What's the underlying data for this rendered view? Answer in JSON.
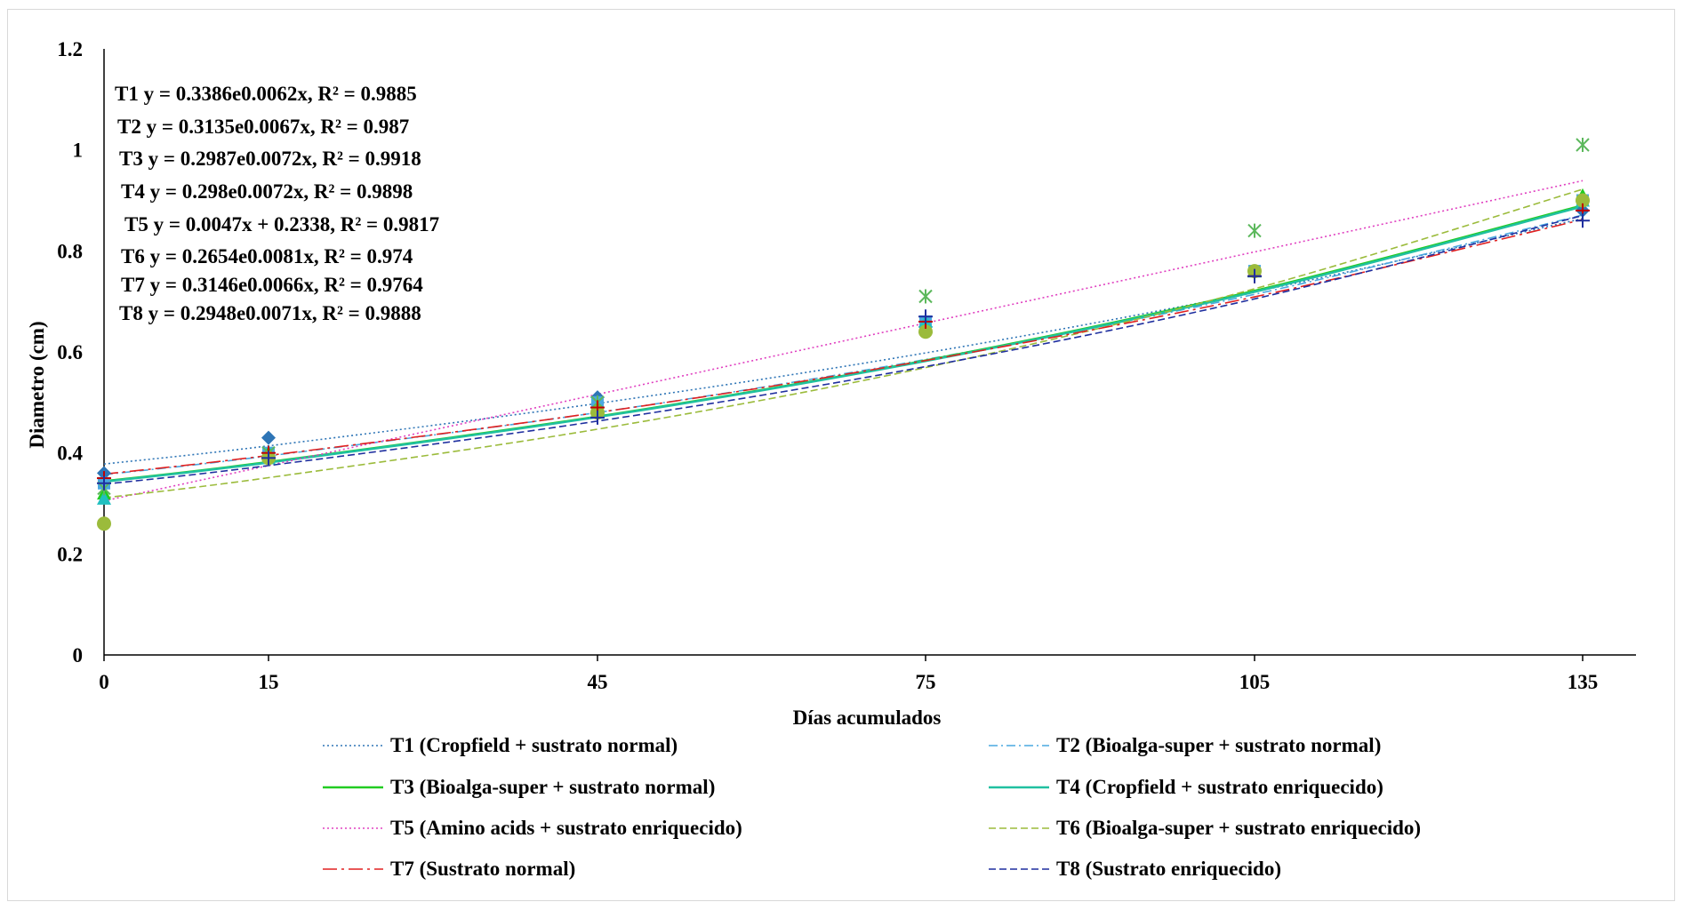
{
  "chart_data": {
    "type": "scatter",
    "xlabel": "Días acumulados",
    "ylabel": "Diametro (cm)",
    "ylim": [
      0,
      1.2
    ],
    "yticks": [
      "0",
      "0.2",
      "0.4",
      "0.6",
      "0.8",
      "1",
      "1.2"
    ],
    "x": [
      0,
      15,
      45,
      75,
      105,
      135
    ],
    "xticks": [
      "0",
      "15",
      "45",
      "75",
      "105",
      "135"
    ],
    "grid": false,
    "legend_position": "bottom",
    "equations": [
      "T1 y = 0.3386e0.0062x, R² = 0.9885",
      "T2 y = 0.3135e0.0067x, R² = 0.987",
      "T3 y = 0.2987e0.0072x, R² = 0.9918",
      "T4 y = 0.298e0.0072x, R² = 0.9898",
      "T5 y = 0.0047x + 0.2338, R² = 0.9817",
      "T6 y = 0.2654e0.0081x, R² = 0.974",
      "T7 y = 0.3146e0.0066x, R² = 0.9764",
      "T8 y = 0.2948e0.0071x, R² = 0.9888"
    ],
    "series": [
      {
        "name": "T1 (Cropfield + sustrato normal)",
        "color": "#2e75b6",
        "dash": "dotted",
        "marker": "diamond",
        "marker_color": "#2e75b6",
        "trend": "exp",
        "a": 0.3386,
        "b": 0.0062,
        "trend_y": [
          0.378,
          0.414,
          0.498,
          0.598,
          0.719,
          0.864
        ],
        "values": [
          0.36,
          0.43,
          0.51,
          0.65,
          0.76,
          0.88
        ]
      },
      {
        "name": "T2 (Bioalga-super + sustrato normal)",
        "color": "#4aa8e0",
        "dash": "dashdot",
        "marker": "square",
        "marker_color": "#4aa8e0",
        "trend": "exp",
        "a": 0.3135,
        "b": 0.0067,
        "trend_y": [
          0.357,
          0.394,
          0.48,
          0.585,
          0.714,
          0.871
        ],
        "values": [
          0.34,
          0.4,
          0.5,
          0.66,
          0.76,
          0.9
        ]
      },
      {
        "name": "T3 (Bioalga-super + sustrato normal)",
        "color": "#22cc22",
        "dash": "solid",
        "marker": "triangle",
        "marker_color": "#22cc22",
        "trend": "exp",
        "a": 0.2987,
        "b": 0.0072,
        "trend_y": [
          0.344,
          0.382,
          0.472,
          0.583,
          0.721,
          0.89
        ],
        "values": [
          0.32,
          0.4,
          0.49,
          0.65,
          0.76,
          0.91
        ]
      },
      {
        "name": "T4 (Cropfield + sustrato enriquecido)",
        "color": "#20c0a0",
        "dash": "solid",
        "marker": "triangle",
        "marker_color": "#20c0c0",
        "trend": "exp",
        "a": 0.298,
        "b": 0.0072,
        "trend_y": [
          0.343,
          0.381,
          0.471,
          0.582,
          0.719,
          0.888
        ],
        "values": [
          0.31,
          0.39,
          0.48,
          0.66,
          0.76,
          0.9
        ]
      },
      {
        "name": "T5 (Amino acids + sustrato enriquecido)",
        "color": "#e040c0",
        "dash": "dotted",
        "marker": "star",
        "marker_color": "#5cb85c",
        "trend": "linear",
        "a": 0.2338,
        "b": 0.0047,
        "trend_y": [
          0.305,
          0.375,
          0.516,
          0.657,
          0.798,
          0.939
        ],
        "values": [
          0.33,
          0.4,
          0.5,
          0.71,
          0.84,
          1.01
        ]
      },
      {
        "name": "T6 (Bioalga-super + sustrato enriquecido)",
        "color": "#9bbb3b",
        "dash": "dashed",
        "marker": "circle",
        "marker_color": "#9bbb3b",
        "trend": "exp",
        "a": 0.2654,
        "b": 0.0081,
        "trend_y": [
          0.311,
          0.351,
          0.447,
          0.569,
          0.725,
          0.922
        ],
        "values": [
          0.26,
          0.39,
          0.48,
          0.64,
          0.76,
          0.9
        ]
      },
      {
        "name": "T7 (Sustrato normal)",
        "color": "#e02020",
        "dash": "longdashdot",
        "marker": "plus",
        "marker_color": "#c00000",
        "trend": "exp",
        "a": 0.3146,
        "b": 0.0066,
        "trend_y": [
          0.358,
          0.395,
          0.48,
          0.583,
          0.709,
          0.862
        ],
        "values": [
          0.35,
          0.4,
          0.49,
          0.66,
          0.75,
          0.88
        ]
      },
      {
        "name": "T8 (Sustrato enriquecido)",
        "color": "#1f2f9f",
        "dash": "dashed",
        "marker": "plus",
        "marker_color": "#1f2f9f",
        "trend": "exp",
        "a": 0.2948,
        "b": 0.0071,
        "trend_y": [
          0.338,
          0.375,
          0.463,
          0.571,
          0.705,
          0.87
        ],
        "values": [
          0.34,
          0.39,
          0.47,
          0.67,
          0.75,
          0.86
        ]
      }
    ]
  }
}
